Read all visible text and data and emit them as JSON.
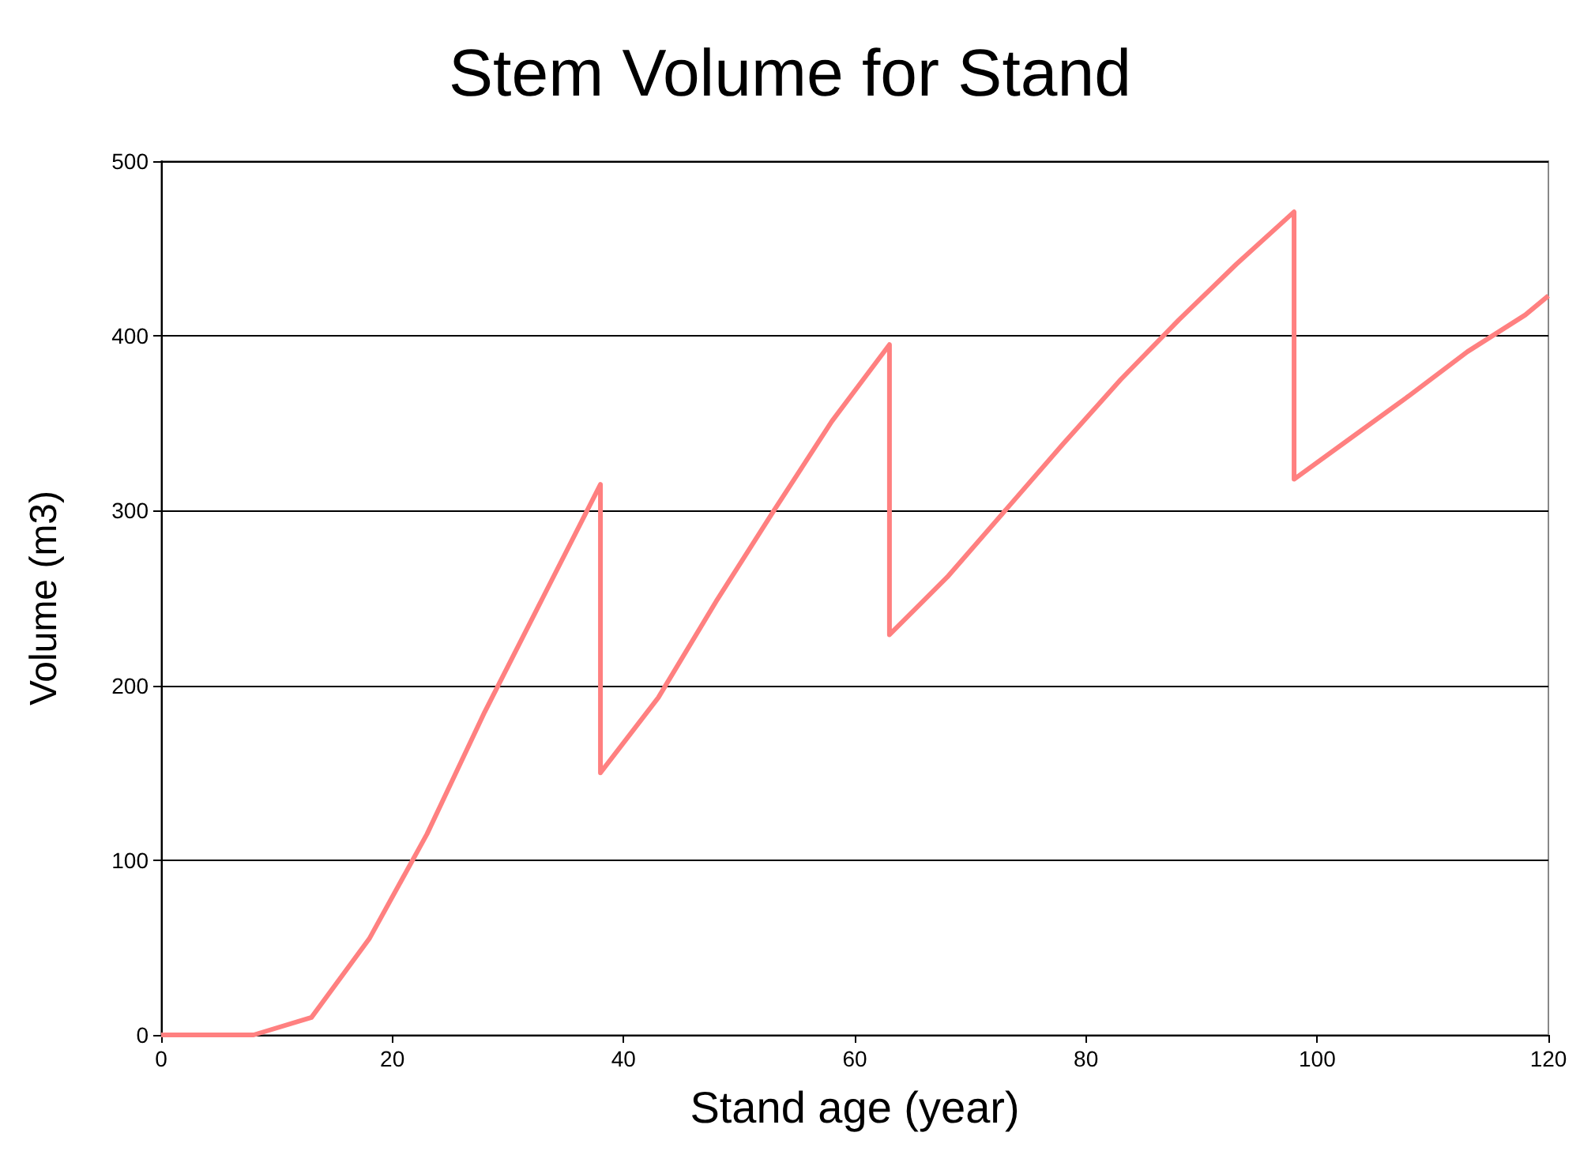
{
  "chart_data": {
    "type": "line",
    "title": "Stem Volume for Stand",
    "xlabel": "Stand age (year)",
    "ylabel": "Volume (m3)",
    "x": [
      0,
      8,
      13,
      18,
      23,
      28,
      33,
      38,
      38,
      43,
      48,
      53,
      58,
      63,
      63,
      68,
      73,
      78,
      83,
      88,
      93,
      98,
      98,
      103,
      108,
      113,
      118,
      120
    ],
    "series": [
      {
        "color": "#ff8080",
        "values": [
          0,
          0,
          10,
          55,
          115,
          185,
          250,
          315,
          150,
          193,
          248,
          300,
          351,
          395,
          229,
          262,
          300,
          338,
          375,
          409,
          441,
          471,
          318,
          342,
          366,
          391,
          412,
          423
        ]
      }
    ],
    "xlim": [
      0,
      120
    ],
    "xticks": [
      0,
      20,
      40,
      60,
      80,
      100,
      120
    ],
    "ylim": [
      0,
      500
    ],
    "yticks": [
      0,
      100,
      200,
      300,
      400,
      500
    ],
    "grid": "y",
    "marker": "none",
    "line_style": "solid"
  }
}
